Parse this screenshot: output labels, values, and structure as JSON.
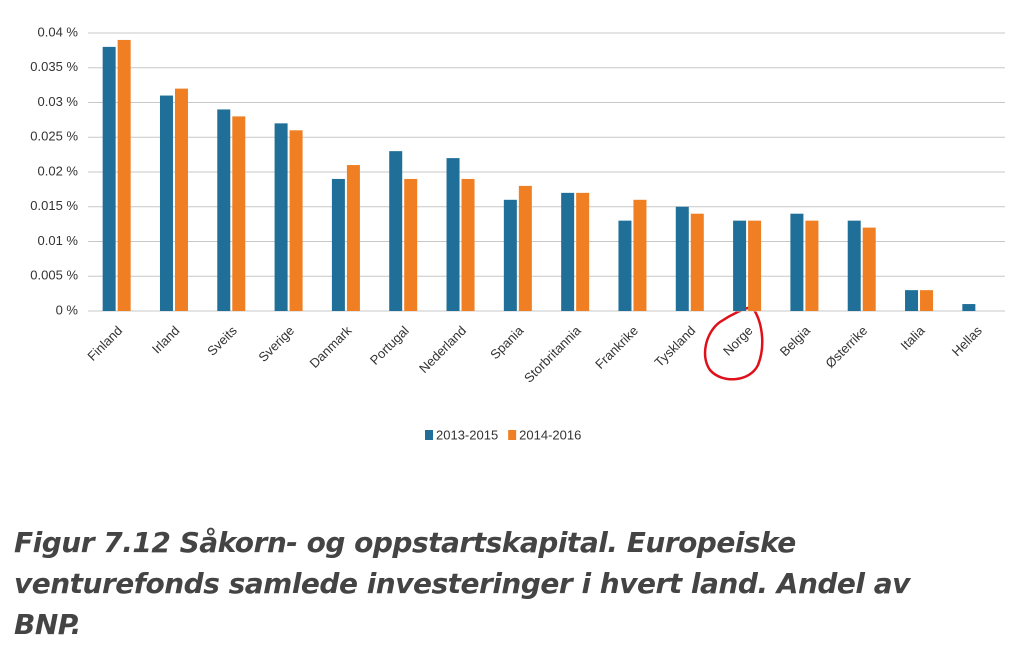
{
  "chart_data": {
    "type": "bar",
    "categories": [
      "Finland",
      "Irland",
      "Sveits",
      "Sverige",
      "Danmark",
      "Portugal",
      "Nederland",
      "Spania",
      "Storbritannia",
      "Frankrike",
      "Tyskland",
      "Norge",
      "Belgia",
      "Østerrike",
      "Italia",
      "Hellas"
    ],
    "series": [
      {
        "name": "2013-2015",
        "color": "#1f6f99",
        "values": [
          0.038,
          0.031,
          0.029,
          0.027,
          0.019,
          0.023,
          0.022,
          0.016,
          0.017,
          0.013,
          0.015,
          0.013,
          0.014,
          0.013,
          0.003,
          0.001
        ]
      },
      {
        "name": "2014-2016",
        "color": "#ef7f22",
        "values": [
          0.039,
          0.032,
          0.028,
          0.026,
          0.021,
          0.019,
          0.019,
          0.018,
          0.017,
          0.016,
          0.014,
          0.013,
          0.013,
          0.012,
          0.003,
          null
        ]
      }
    ],
    "ylim": [
      0,
      0.04
    ],
    "yticks": [
      {
        "value": 0,
        "label": "0 %"
      },
      {
        "value": 0.005,
        "label": "0.005 %"
      },
      {
        "value": 0.01,
        "label": "0.01 %"
      },
      {
        "value": 0.015,
        "label": "0.015 %"
      },
      {
        "value": 0.02,
        "label": "0.02 %"
      },
      {
        "value": 0.025,
        "label": "0.025 %"
      },
      {
        "value": 0.03,
        "label": "0.03 %"
      },
      {
        "value": 0.035,
        "label": "0.035 %"
      },
      {
        "value": 0.04,
        "label": "0.04 %"
      }
    ],
    "grid": true,
    "legend": "bottom",
    "caption": "Figur 7.12 Såkorn- og oppstartskapital. Europeiske venturefonds samlede investeringer i hvert land. Andel av BNP."
  }
}
